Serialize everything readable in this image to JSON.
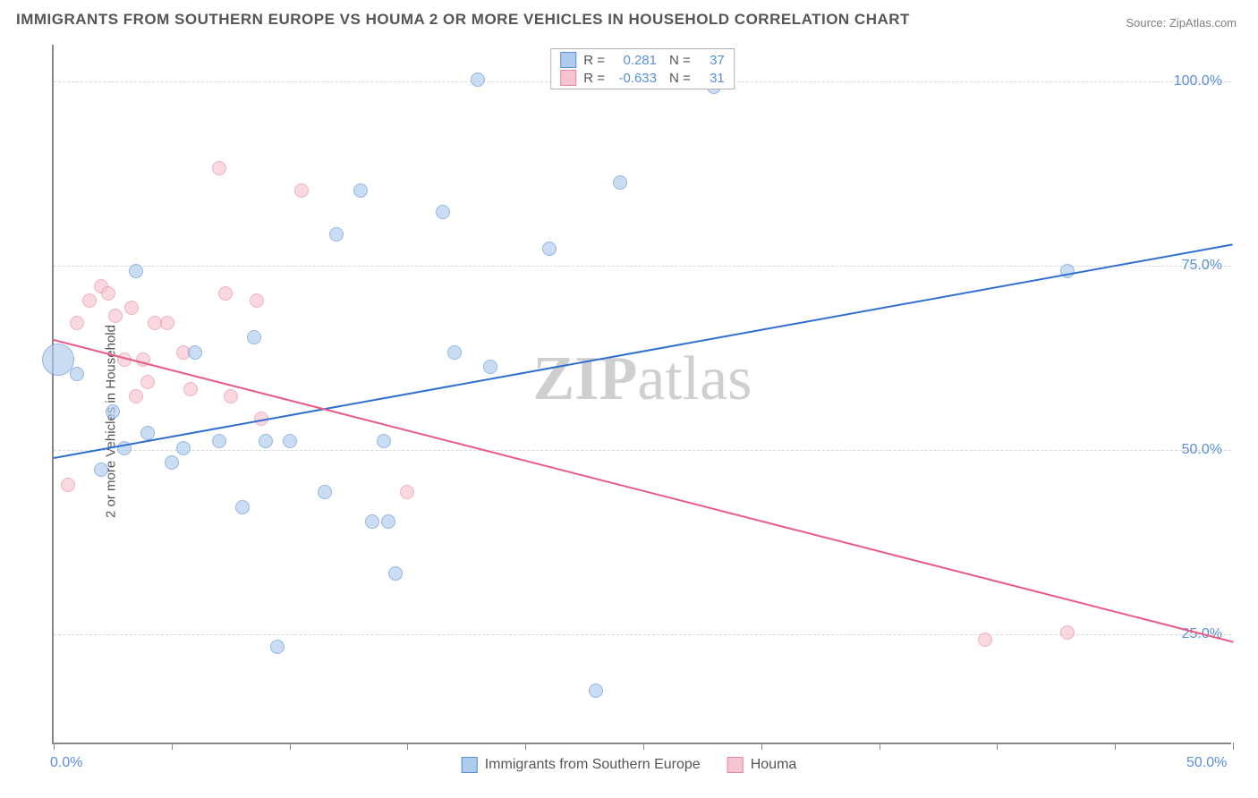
{
  "title": "IMMIGRANTS FROM SOUTHERN EUROPE VS HOUMA 2 OR MORE VEHICLES IN HOUSEHOLD CORRELATION CHART",
  "source": "Source: ZipAtlas.com",
  "watermark_bold": "ZIP",
  "watermark_light": "atlas",
  "y_axis_label": "2 or more Vehicles in Household",
  "chart": {
    "type": "scatter-with-regression",
    "background_color": "#ffffff",
    "grid_color": "#d8d8d8",
    "axis_color": "#888888",
    "xlim": [
      0,
      50
    ],
    "ylim": [
      10,
      105
    ],
    "x_ticks": [
      0,
      5,
      10,
      15,
      20,
      25,
      30,
      35,
      40,
      45,
      50
    ],
    "x_tick_labels": {
      "0": "0.0%",
      "50": "50.0%"
    },
    "y_gridlines": [
      25,
      50,
      75,
      100
    ],
    "y_tick_labels": {
      "25": "25.0%",
      "50": "50.0%",
      "75": "75.0%",
      "100": "100.0%"
    },
    "xtick_label_color": "#5b8fd6",
    "ytick_label_color": "#5b8fd6",
    "tick_fontsize": 16,
    "series": [
      {
        "name": "Immigrants from Southern Europe",
        "key": "blue",
        "fill_color": "#aeccec",
        "stroke_color": "#5b8fd6",
        "fill_opacity": 0.65,
        "marker_radius": 8,
        "R": "0.281",
        "N": "37",
        "trend": {
          "color": "#2f6fd0",
          "x1": 0,
          "y1": 49,
          "x2": 50,
          "y2": 78,
          "width": 2
        },
        "points": [
          {
            "x": 0.2,
            "y": 62,
            "r": 18
          },
          {
            "x": 1.0,
            "y": 60,
            "r": 8
          },
          {
            "x": 2.5,
            "y": 55,
            "r": 8
          },
          {
            "x": 3.5,
            "y": 74,
            "r": 8
          },
          {
            "x": 3.0,
            "y": 50,
            "r": 8
          },
          {
            "x": 4.0,
            "y": 52,
            "r": 8
          },
          {
            "x": 2.0,
            "y": 47,
            "r": 8
          },
          {
            "x": 5.0,
            "y": 48,
            "r": 8
          },
          {
            "x": 5.5,
            "y": 50,
            "r": 8
          },
          {
            "x": 6.0,
            "y": 63,
            "r": 8
          },
          {
            "x": 7.0,
            "y": 51,
            "r": 8
          },
          {
            "x": 8.0,
            "y": 42,
            "r": 8
          },
          {
            "x": 8.5,
            "y": 65,
            "r": 8
          },
          {
            "x": 9.0,
            "y": 51,
            "r": 8
          },
          {
            "x": 9.5,
            "y": 23,
            "r": 8
          },
          {
            "x": 10.0,
            "y": 51,
            "r": 8
          },
          {
            "x": 11.5,
            "y": 44,
            "r": 8
          },
          {
            "x": 12.0,
            "y": 79,
            "r": 8
          },
          {
            "x": 13.0,
            "y": 85,
            "r": 8
          },
          {
            "x": 13.5,
            "y": 40,
            "r": 8
          },
          {
            "x": 14.0,
            "y": 51,
            "r": 8
          },
          {
            "x": 14.2,
            "y": 40,
            "r": 8
          },
          {
            "x": 14.5,
            "y": 33,
            "r": 8
          },
          {
            "x": 16.5,
            "y": 82,
            "r": 8
          },
          {
            "x": 17.0,
            "y": 63,
            "r": 8
          },
          {
            "x": 18.0,
            "y": 100,
            "r": 8
          },
          {
            "x": 18.5,
            "y": 61,
            "r": 8
          },
          {
            "x": 21.0,
            "y": 77,
            "r": 8
          },
          {
            "x": 23.0,
            "y": 17,
            "r": 8
          },
          {
            "x": 24.0,
            "y": 86,
            "r": 8
          },
          {
            "x": 28.0,
            "y": 99,
            "r": 8
          },
          {
            "x": 43.0,
            "y": 74,
            "r": 8
          }
        ]
      },
      {
        "name": "Houma",
        "key": "pink",
        "fill_color": "#f6c4cf",
        "stroke_color": "#e48aa0",
        "fill_opacity": 0.65,
        "marker_radius": 8,
        "R": "-0.633",
        "N": "31",
        "trend": {
          "color": "#e85c85",
          "x1": 0,
          "y1": 65,
          "x2": 50,
          "y2": 24,
          "width": 2
        },
        "points": [
          {
            "x": 0.6,
            "y": 45,
            "r": 8
          },
          {
            "x": 1.0,
            "y": 67,
            "r": 8
          },
          {
            "x": 1.5,
            "y": 70,
            "r": 8
          },
          {
            "x": 2.0,
            "y": 72,
            "r": 8
          },
          {
            "x": 2.3,
            "y": 71,
            "r": 8
          },
          {
            "x": 2.6,
            "y": 68,
            "r": 8
          },
          {
            "x": 3.0,
            "y": 62,
            "r": 8
          },
          {
            "x": 3.3,
            "y": 69,
            "r": 8
          },
          {
            "x": 3.5,
            "y": 57,
            "r": 8
          },
          {
            "x": 3.8,
            "y": 62,
            "r": 8
          },
          {
            "x": 4.0,
            "y": 59,
            "r": 8
          },
          {
            "x": 4.3,
            "y": 67,
            "r": 8
          },
          {
            "x": 4.8,
            "y": 67,
            "r": 8
          },
          {
            "x": 5.5,
            "y": 63,
            "r": 8
          },
          {
            "x": 5.8,
            "y": 58,
            "r": 8
          },
          {
            "x": 7.0,
            "y": 88,
            "r": 8
          },
          {
            "x": 7.3,
            "y": 71,
            "r": 8
          },
          {
            "x": 7.5,
            "y": 57,
            "r": 8
          },
          {
            "x": 8.6,
            "y": 70,
            "r": 8
          },
          {
            "x": 8.8,
            "y": 54,
            "r": 8
          },
          {
            "x": 10.5,
            "y": 85,
            "r": 8
          },
          {
            "x": 15.0,
            "y": 44,
            "r": 8
          },
          {
            "x": 39.5,
            "y": 24,
            "r": 8
          },
          {
            "x": 43.0,
            "y": 25,
            "r": 8
          }
        ]
      }
    ],
    "legend_top": {
      "R_label": "R =",
      "N_label": "N ="
    },
    "legend_bottom_labels": [
      "Immigrants from Southern Europe",
      "Houma"
    ]
  }
}
